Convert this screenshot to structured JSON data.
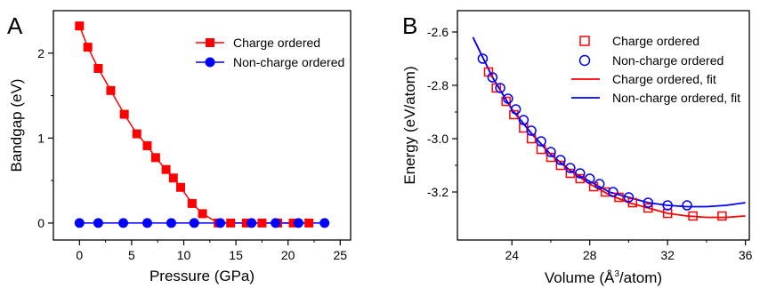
{
  "chart_data": [
    {
      "panel_label": "A",
      "type": "line",
      "xlabel": "Pressure (GPa)",
      "ylabel": "Bandgap (eV)",
      "xlim": [
        -2.5,
        26
      ],
      "ylim": [
        -0.2,
        2.5
      ],
      "xticks": [
        0,
        5,
        10,
        15,
        20,
        25
      ],
      "yticks": [
        0,
        1,
        2
      ],
      "xtick_labels": [
        "0",
        "5",
        "10",
        "15",
        "20",
        "25"
      ],
      "ytick_labels": [
        "0",
        "1",
        "2"
      ],
      "legend_position": "top-right",
      "grid": false,
      "series": [
        {
          "name": "Charge ordered",
          "color": "#ff0000",
          "marker": "filled-square",
          "x": [
            0,
            0.8,
            1.8,
            3.0,
            4.3,
            5.5,
            6.5,
            7.3,
            8.3,
            9.0,
            9.7,
            10.8,
            11.8,
            13.3,
            14.5,
            16.0,
            17.5,
            19.0,
            20.5,
            22.0
          ],
          "y": [
            2.32,
            2.07,
            1.82,
            1.56,
            1.28,
            1.05,
            0.91,
            0.77,
            0.63,
            0.53,
            0.42,
            0.23,
            0.11,
            0.0,
            0.0,
            0.0,
            0.0,
            0.0,
            0.0,
            0.0
          ]
        },
        {
          "name": "Non-charge ordered",
          "color": "#0000ff",
          "marker": "filled-circle",
          "x": [
            0,
            1.8,
            4.2,
            6.5,
            8.8,
            11.0,
            13.5,
            16.5,
            18.8,
            21.0,
            23.5
          ],
          "y": [
            0,
            0,
            0,
            0,
            0,
            0,
            0,
            0,
            0,
            0,
            0
          ]
        }
      ]
    },
    {
      "panel_label": "B",
      "type": "scatter",
      "xlabel_main": "Volume (Å",
      "xlabel_sup": "3",
      "xlabel_tail": "/atom)",
      "ylabel": "Energy (eV/atom)",
      "xlim": [
        21.2,
        36.2
      ],
      "ylim": [
        -3.38,
        -2.52
      ],
      "xticks": [
        24,
        28,
        32,
        36
      ],
      "yticks": [
        -2.6,
        -2.8,
        -3.0,
        -3.2
      ],
      "xtick_labels": [
        "24",
        "28",
        "32",
        "36"
      ],
      "ytick_labels": [
        "-2.6",
        "-2.8",
        "-3.0",
        "-3.2"
      ],
      "legend_position": "top-right",
      "grid": false,
      "series": [
        {
          "name": "Charge ordered",
          "color": "#ff0000",
          "marker": "open-square",
          "x": [
            22.8,
            23.2,
            23.7,
            24.1,
            24.6,
            25.0,
            25.5,
            26.0,
            26.5,
            27.0,
            27.5,
            28.2,
            28.8,
            29.5,
            30.2,
            31.0,
            32.0,
            33.3,
            34.8
          ],
          "y": [
            -2.75,
            -2.81,
            -2.86,
            -2.91,
            -2.96,
            -3.0,
            -3.04,
            -3.07,
            -3.1,
            -3.13,
            -3.15,
            -3.18,
            -3.2,
            -3.22,
            -3.24,
            -3.26,
            -3.28,
            -3.29,
            -3.29
          ]
        },
        {
          "name": "Non-charge ordered",
          "color": "#0000ff",
          "marker": "open-circle",
          "x": [
            22.5,
            23.0,
            23.4,
            23.8,
            24.2,
            24.6,
            25.0,
            25.5,
            26.0,
            26.5,
            27.0,
            27.5,
            28.0,
            28.5,
            29.2,
            30.0,
            31.0,
            32.0,
            33.0
          ],
          "y": [
            -2.7,
            -2.77,
            -2.81,
            -2.85,
            -2.89,
            -2.93,
            -2.97,
            -3.01,
            -3.05,
            -3.08,
            -3.11,
            -3.13,
            -3.15,
            -3.17,
            -3.2,
            -3.22,
            -3.24,
            -3.25,
            -3.25
          ]
        },
        {
          "name": "Charge ordered, fit",
          "color": "#ff0000",
          "marker": "line",
          "x": [
            22.0,
            23.0,
            24.0,
            25.0,
            26.0,
            27.0,
            28.0,
            29.0,
            30.0,
            31.0,
            32.0,
            33.0,
            34.0,
            35.0,
            36.0
          ],
          "y": [
            -2.62,
            -2.77,
            -2.89,
            -2.98,
            -3.06,
            -3.12,
            -3.17,
            -3.21,
            -3.24,
            -3.26,
            -3.28,
            -3.29,
            -3.295,
            -3.295,
            -3.29
          ]
        },
        {
          "name": "Non-charge ordered, fit",
          "color": "#0000ff",
          "marker": "line",
          "x": [
            22.0,
            23.0,
            24.0,
            25.0,
            26.0,
            27.0,
            28.0,
            29.0,
            30.0,
            31.0,
            32.0,
            33.0,
            34.0,
            35.0,
            36.0
          ],
          "y": [
            -2.62,
            -2.77,
            -2.89,
            -2.98,
            -3.06,
            -3.12,
            -3.16,
            -3.2,
            -3.22,
            -3.24,
            -3.25,
            -3.255,
            -3.255,
            -3.25,
            -3.24
          ]
        }
      ]
    }
  ]
}
